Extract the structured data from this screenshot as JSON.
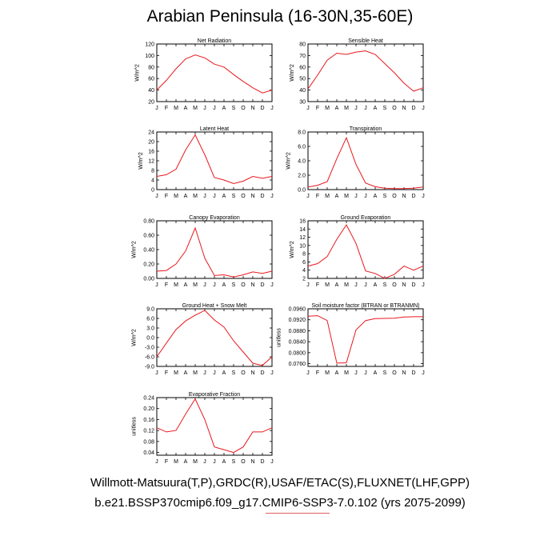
{
  "title": "Arabian Peninsula (16-30N,35-60E)",
  "captions": {
    "line1": "Willmott-Matsuura(T,P),GRDC(R),USAF/ETAC(S),FLUXNET(LHF,GPP)",
    "line2": "b.e21.BSSP370cmip6.f09_g17.CMIP6-SSP3-7.0.102 (yrs 2075-2099)"
  },
  "line_color": "#e8191f",
  "months": [
    "J",
    "F",
    "M",
    "A",
    "M",
    "J",
    "J",
    "A",
    "S",
    "O",
    "N",
    "D",
    "J"
  ],
  "chart_data": [
    {
      "type": "line",
      "title": "Net Radiation",
      "ylabel": "W/m^2",
      "ylim": [
        20,
        120
      ],
      "yticks": [
        "20",
        "40",
        "60",
        "80",
        "100",
        "120"
      ],
      "values": [
        40,
        57,
        77,
        94,
        101,
        96,
        85,
        80,
        67,
        55,
        44,
        35,
        40
      ]
    },
    {
      "type": "line",
      "title": "Sensible Heat",
      "ylabel": "W/m^2",
      "ylim": [
        30,
        80
      ],
      "yticks": [
        "30",
        "40",
        "50",
        "60",
        "70",
        "80"
      ],
      "values": [
        41,
        53,
        66,
        72,
        71,
        73,
        74,
        71,
        63,
        55,
        46,
        39,
        42
      ]
    },
    {
      "type": "line",
      "title": "Latent Heat",
      "ylabel": "W/m^2",
      "ylim": [
        0,
        24
      ],
      "yticks": [
        "0",
        "4",
        "8",
        "12",
        "16",
        "20",
        "24"
      ],
      "values": [
        5.5,
        6.2,
        8.5,
        16.5,
        22.8,
        14.5,
        5.0,
        4.0,
        2.5,
        3.5,
        5.5,
        4.7,
        5.5
      ]
    },
    {
      "type": "line",
      "title": "Transpiration",
      "ylabel": "W/m^2",
      "ylim": [
        0,
        8
      ],
      "yticks": [
        "0.0",
        "2.0",
        "4.0",
        "6.0",
        "8.0"
      ],
      "values": [
        0.35,
        0.6,
        1.1,
        4.3,
        7.2,
        3.5,
        0.9,
        0.4,
        0.2,
        0.15,
        0.15,
        0.2,
        0.35
      ]
    },
    {
      "type": "line",
      "title": "Canopy Evaporation",
      "ylabel": "W/m^2",
      "ylim": [
        0,
        0.8
      ],
      "yticks": [
        "0.00",
        "0.20",
        "0.40",
        "0.60",
        "0.80"
      ],
      "values": [
        0.1,
        0.11,
        0.2,
        0.38,
        0.7,
        0.28,
        0.04,
        0.05,
        0.02,
        0.05,
        0.09,
        0.07,
        0.1
      ]
    },
    {
      "type": "line",
      "title": "Ground Evaporation",
      "ylabel": "W/m^2",
      "ylim": [
        2,
        16
      ],
      "yticks": [
        "2",
        "4",
        "6",
        "8",
        "10",
        "12",
        "14",
        "16"
      ],
      "values": [
        5.0,
        5.6,
        7.3,
        11.5,
        15.0,
        10.5,
        3.8,
        3.2,
        2.0,
        3.0,
        5.0,
        4.0,
        5.0
      ]
    },
    {
      "type": "line",
      "title": "Ground Heat + Snow Melt",
      "ylabel": "W/m^2",
      "ylim": [
        -9,
        9
      ],
      "yticks": [
        "-9.0",
        "-6.0",
        "-3.0",
        "0.0",
        "3.0",
        "6.0",
        "9.0"
      ],
      "values": [
        -6.0,
        -1.7,
        2.5,
        5.2,
        7.0,
        8.5,
        5.5,
        3.3,
        -1.0,
        -4.5,
        -8.0,
        -8.7,
        -6.0
      ]
    },
    {
      "type": "line",
      "title": "Soil moisture factor (BTRAN or BTRANMN)",
      "ylabel": "unitless",
      "ylim": [
        0.075,
        0.096
      ],
      "yticks": [
        "0.0760",
        "0.0800",
        "0.0840",
        "0.0880",
        "0.0920",
        "0.0960"
      ],
      "values": [
        0.0933,
        0.0935,
        0.0917,
        0.0762,
        0.0763,
        0.0883,
        0.0917,
        0.0924,
        0.0925,
        0.0926,
        0.093,
        0.0931,
        0.0931
      ]
    },
    {
      "type": "line",
      "title": "Evaporative Fraction",
      "ylabel": "unitless",
      "ylim": [
        0.03,
        0.24
      ],
      "yticks": [
        "0.04",
        "0.08",
        "0.12",
        "0.16",
        "0.20",
        "0.24"
      ],
      "values": [
        0.13,
        0.115,
        0.12,
        0.18,
        0.235,
        0.16,
        0.06,
        0.05,
        0.04,
        0.06,
        0.115,
        0.115,
        0.13
      ]
    }
  ]
}
